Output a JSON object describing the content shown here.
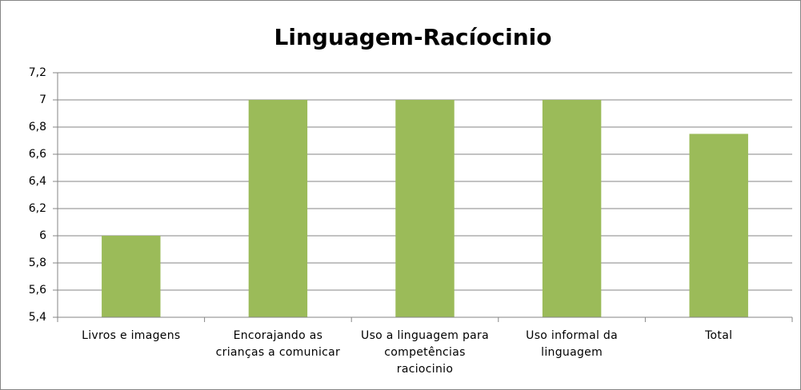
{
  "chart_data": {
    "type": "bar",
    "title": "Linguagem-Racíocinio",
    "categories": [
      "Livros e imagens",
      "Encorajando as crianças a comunicar",
      "Uso a linguagem para competências raciocinio",
      "Uso informal da linguagem",
      "Total"
    ],
    "values": [
      6,
      7,
      7,
      7,
      6.75
    ],
    "color": "#9bbb59",
    "ylim": [
      5.4,
      7.2
    ],
    "yticks": [
      {
        "value": 5.4,
        "label": "5,4"
      },
      {
        "value": 5.6,
        "label": "5,6"
      },
      {
        "value": 5.8,
        "label": "5,8"
      },
      6,
      {
        "value": 6.2,
        "label": "6,2"
      },
      {
        "value": 6.4,
        "label": "6,4"
      },
      {
        "value": 6.6,
        "label": "6,6"
      },
      {
        "value": 6.8,
        "label": "6,8"
      },
      7,
      {
        "value": 7.2,
        "label": "7,2"
      }
    ],
    "grid": true
  }
}
